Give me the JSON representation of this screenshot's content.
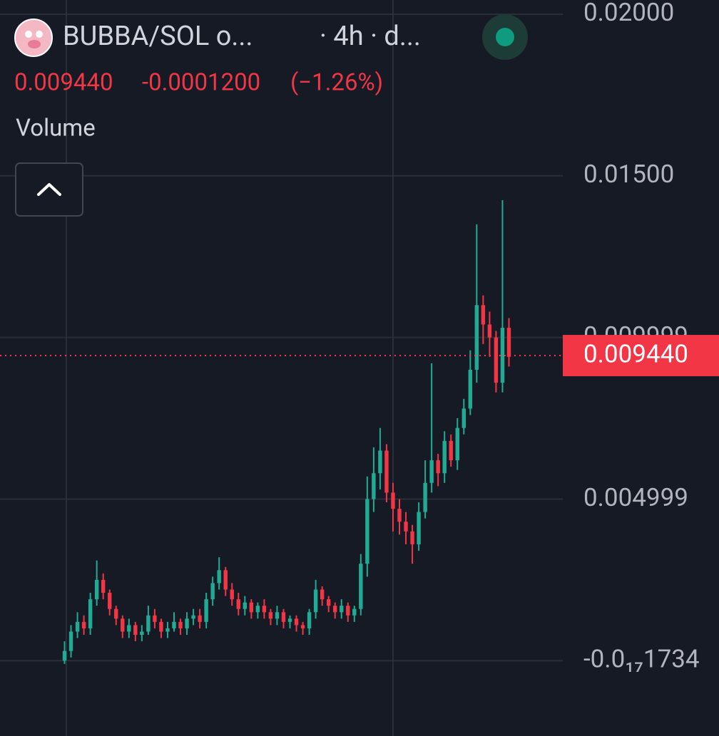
{
  "header": {
    "symbol": "BUBBA/SOL o...",
    "interval": "· 4h · d...",
    "change": "-0.0001200",
    "change_pct": "(−1.26%)",
    "indicator": "Volume"
  },
  "chart_data": {
    "type": "candlestick",
    "up_color": "#22ab94",
    "down_color": "#f23645",
    "grid": true,
    "ylim": [
      -0.00233,
      0.02044
    ],
    "yticks": [
      {
        "value": -1.734e-18,
        "label": "-0.0₁₇1734"
      },
      {
        "value": 0.004999,
        "label": "0.004999"
      },
      0.009999,
      {
        "value": 0.015,
        "label": "0.01500"
      },
      {
        "value": 0.02,
        "label": "0.02000"
      }
    ],
    "price_line": {
      "value": 0.00944,
      "label": "0.009440"
    },
    "open": [
      0,
      0.0003,
      0.0009,
      0.0012,
      0.001,
      0.0019,
      0.0025,
      0.0021,
      0.0016,
      0.0013,
      0.0009,
      0.0011,
      0.0008,
      0.0009,
      0.0014,
      0.0012,
      0.0009,
      0.001,
      0.0012,
      0.001,
      0.0013,
      0.0014,
      0.0012,
      0.0019,
      0.0024,
      0.0028,
      0.0022,
      0.0019,
      0.0016,
      0.0018,
      0.0015,
      0.0017,
      0.0015,
      0.0013,
      0.0015,
      0.0012,
      0.0013,
      0.0011,
      0.001,
      0.0015,
      0.0022,
      0.0019,
      0.0017,
      0.0015,
      0.0017,
      0.0014,
      0.0016,
      0.003,
      0.005,
      0.0058,
      0.0065,
      0.0052,
      0.0047,
      0.0043,
      0.004,
      0.0036,
      0.0046,
      0.0055,
      0.0062,
      0.0058,
      0.0068,
      0.0062,
      0.0072,
      0.0078,
      0.009,
      0.011,
      0.0104,
      0.01,
      0.0086,
      0.0103
    ],
    "high": [
      0.0006,
      0.0011,
      0.0015,
      0.0014,
      0.0021,
      0.0031,
      0.0027,
      0.0022,
      0.0017,
      0.0014,
      0.0013,
      0.0012,
      0.0011,
      0.0017,
      0.0016,
      0.0013,
      0.0012,
      0.0015,
      0.0013,
      0.0015,
      0.0016,
      0.0016,
      0.0021,
      0.0026,
      0.0032,
      0.0029,
      0.0024,
      0.0021,
      0.002,
      0.0019,
      0.0018,
      0.0019,
      0.0016,
      0.0017,
      0.0016,
      0.0014,
      0.0014,
      0.0012,
      0.0016,
      0.0025,
      0.0023,
      0.002,
      0.0018,
      0.0019,
      0.0018,
      0.0017,
      0.0033,
      0.0057,
      0.0066,
      0.0072,
      0.0067,
      0.0055,
      0.005,
      0.0046,
      0.0042,
      0.0049,
      0.0062,
      0.0092,
      0.0064,
      0.0071,
      0.007,
      0.0075,
      0.0081,
      0.0096,
      0.0135,
      0.0113,
      0.0108,
      0.0102,
      0.01425,
      0.0106
    ],
    "low": [
      -0.0001,
      0.0001,
      0.0007,
      0.0008,
      0.0008,
      0.0017,
      0.0019,
      0.0014,
      0.0011,
      0.0007,
      0.0007,
      0.0006,
      0.0006,
      0.0008,
      0.001,
      0.0007,
      0.0007,
      0.0009,
      0.0008,
      0.0008,
      0.0011,
      0.001,
      0.001,
      0.0017,
      0.0022,
      0.002,
      0.0017,
      0.0014,
      0.0014,
      0.0013,
      0.0013,
      0.0013,
      0.0011,
      0.0011,
      0.001,
      0.001,
      0.0009,
      0.0008,
      0.0008,
      0.0013,
      0.0017,
      0.0015,
      0.0013,
      0.0013,
      0.0012,
      0.0012,
      0.0014,
      0.0026,
      0.0046,
      0.0053,
      0.0049,
      0.004,
      0.0039,
      0.0036,
      0.003,
      0.0034,
      0.0044,
      0.0052,
      0.0054,
      0.0055,
      0.006,
      0.0059,
      0.007,
      0.0076,
      0.0086,
      0.0098,
      0.0094,
      0.0083,
      0.0083,
      0.0091
    ],
    "close": [
      0.0003,
      0.0009,
      0.0012,
      0.001,
      0.0019,
      0.0025,
      0.0021,
      0.0016,
      0.0013,
      0.0009,
      0.0011,
      0.0008,
      0.0009,
      0.0014,
      0.0012,
      0.0009,
      0.001,
      0.0012,
      0.001,
      0.0013,
      0.0014,
      0.0012,
      0.0019,
      0.0024,
      0.0028,
      0.0022,
      0.0019,
      0.0016,
      0.0018,
      0.0015,
      0.0017,
      0.0015,
      0.0013,
      0.0015,
      0.0012,
      0.0013,
      0.0011,
      0.001,
      0.0015,
      0.0022,
      0.0019,
      0.0017,
      0.0015,
      0.0017,
      0.0014,
      0.0016,
      0.003,
      0.005,
      0.0058,
      0.0065,
      0.0052,
      0.0047,
      0.0043,
      0.004,
      0.0036,
      0.0046,
      0.0055,
      0.0062,
      0.0058,
      0.0068,
      0.0062,
      0.0072,
      0.0078,
      0.009,
      0.011,
      0.0104,
      0.01,
      0.0086,
      0.0103,
      0.0094
    ]
  }
}
